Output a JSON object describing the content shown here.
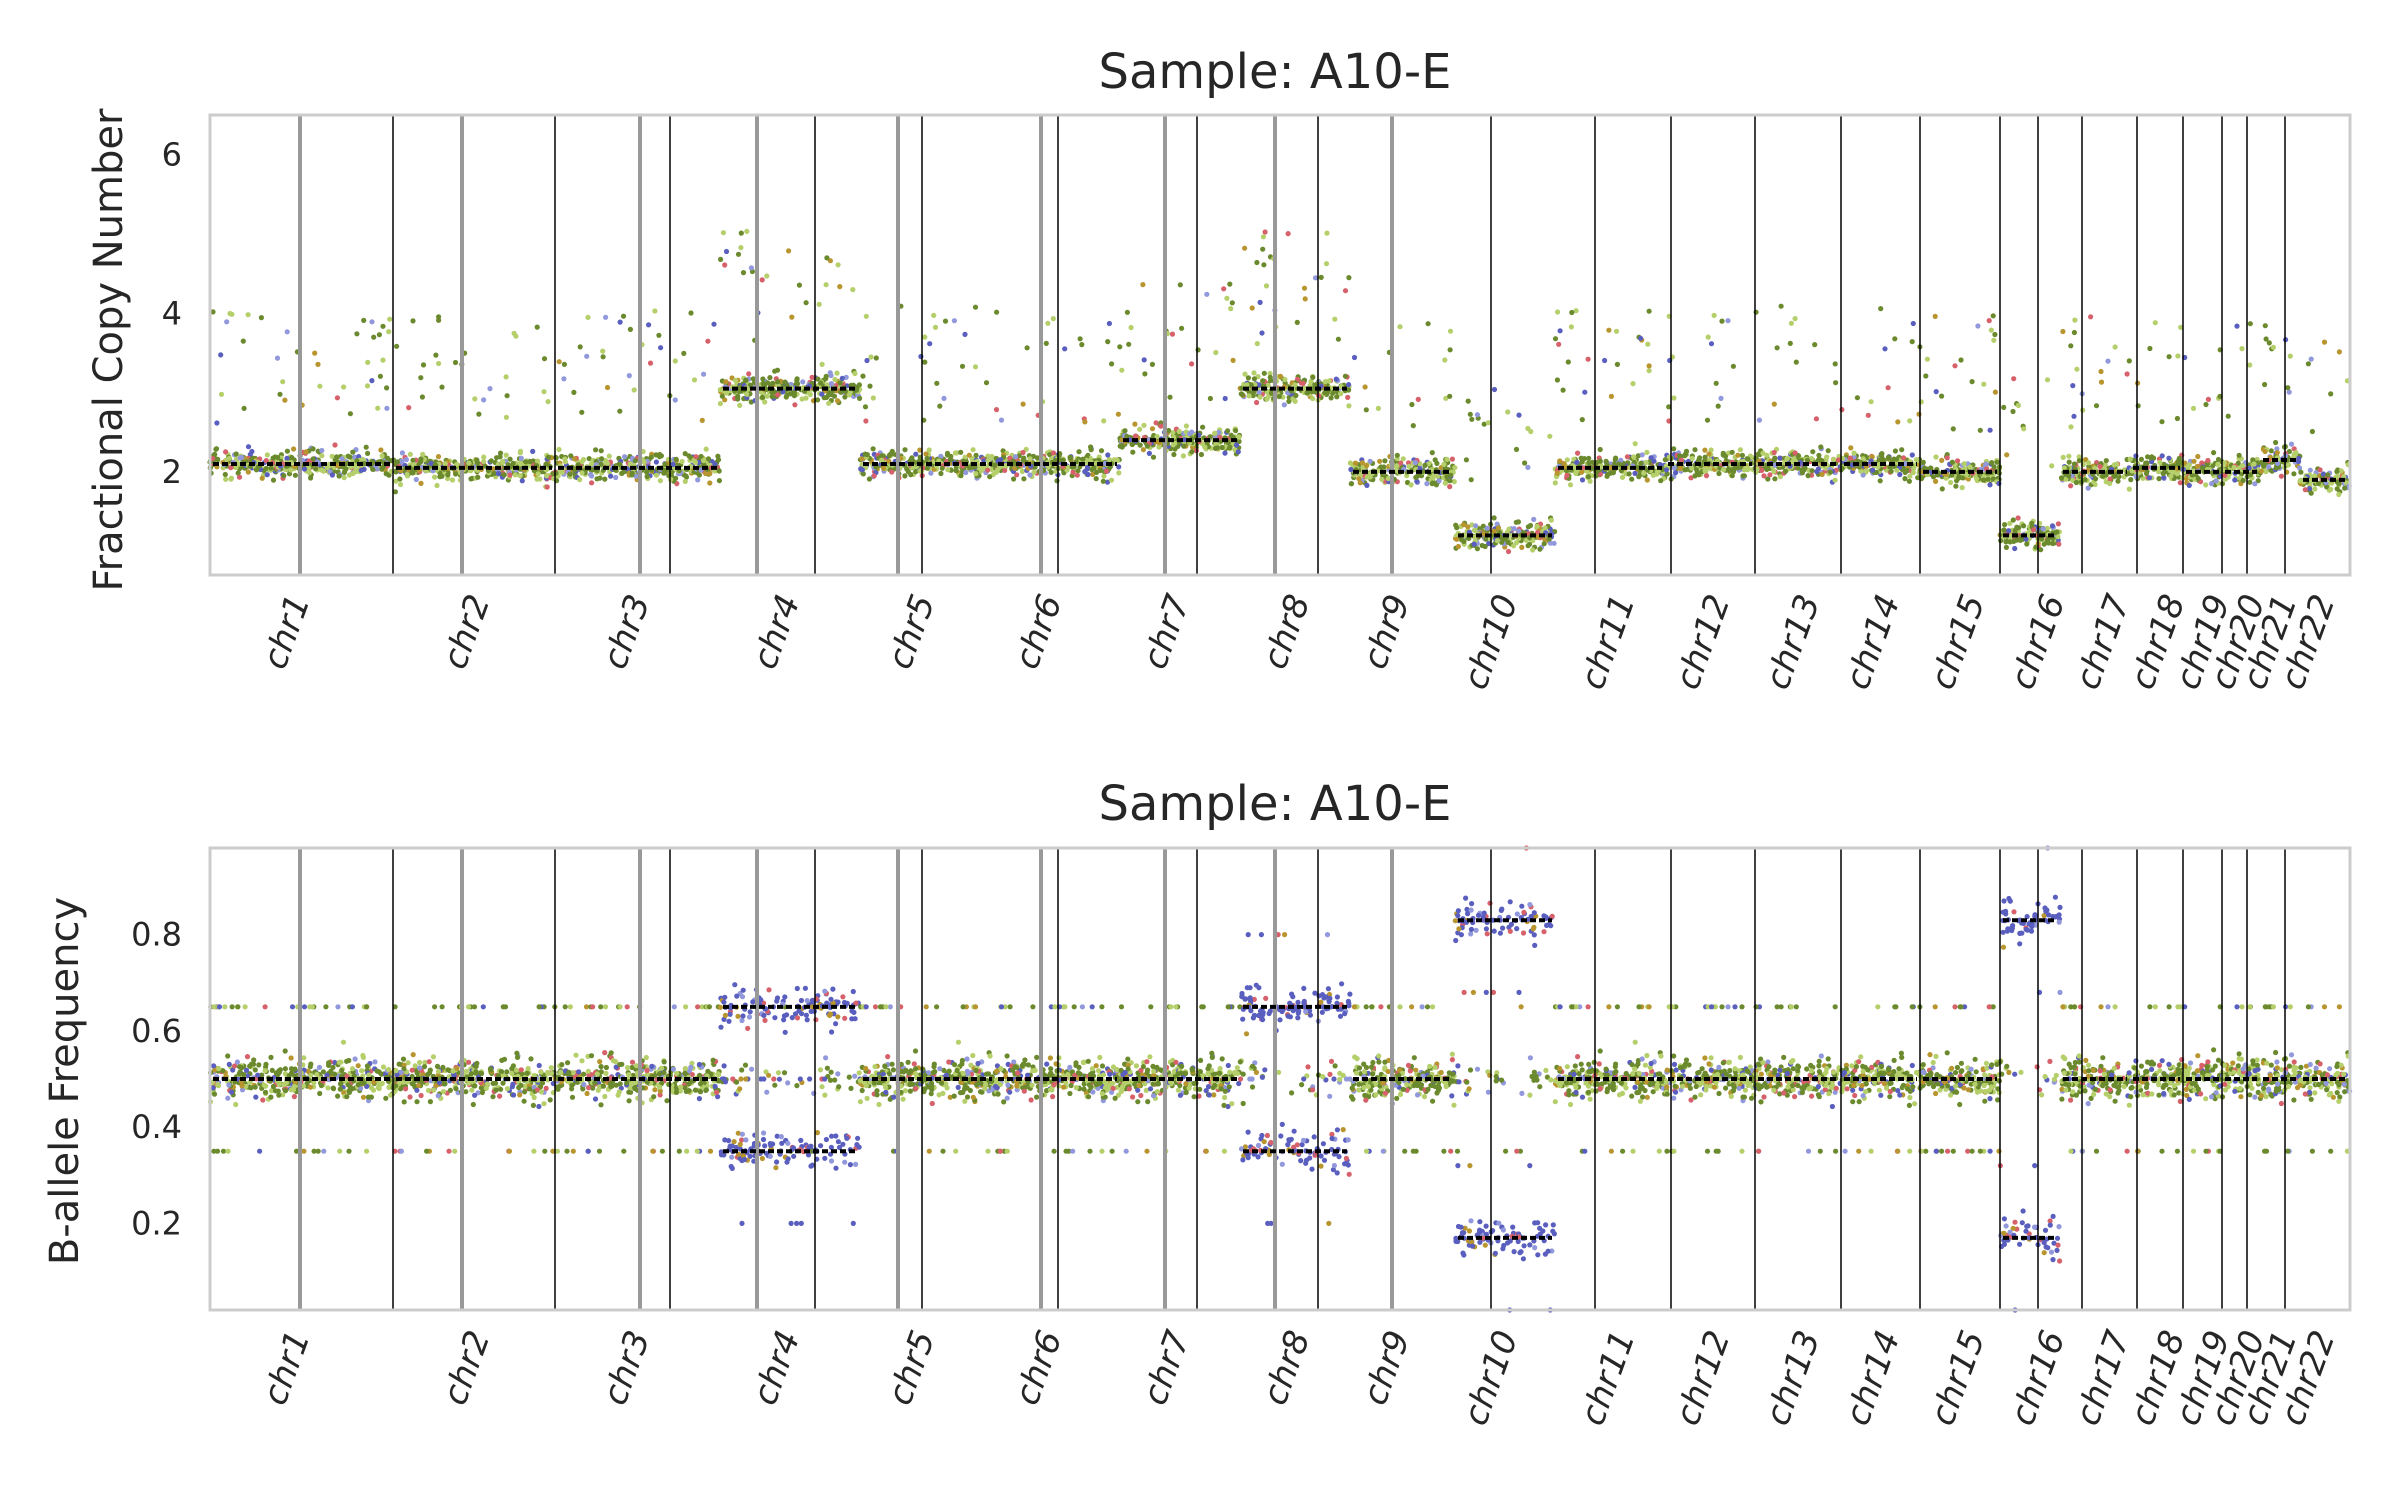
{
  "chart_data": [
    {
      "type": "scatter",
      "title": "Sample: A10-E",
      "ylabel": "Fractional Copy Number",
      "ylim": [
        0.7,
        6.5
      ],
      "yticks": [
        2,
        4,
        6
      ],
      "grid": false,
      "chromosomes": [
        "chr1",
        "chr2",
        "chr3",
        "chr4",
        "chr5",
        "chr6",
        "chr7",
        "chr8",
        "chr9",
        "chr10",
        "chr11",
        "chr12",
        "chr13",
        "chr14",
        "chr15",
        "chr16",
        "chr17",
        "chr18",
        "chr19",
        "chr20",
        "chr21",
        "chr22"
      ],
      "segments": [
        {
          "chr": "chr1",
          "value": 2.1
        },
        {
          "chr": "chr2",
          "value": 2.05
        },
        {
          "chr": "chr3",
          "value": 2.05
        },
        {
          "chr": "chr4",
          "value": 3.05
        },
        {
          "chr": "chr5",
          "value": 2.1
        },
        {
          "chr": "chr6",
          "value": 2.1
        },
        {
          "chr": "chr7",
          "value": 2.4
        },
        {
          "chr": "chr8",
          "value": 3.05
        },
        {
          "chr": "chr9",
          "value": 2.0
        },
        {
          "chr": "chr10",
          "value": 1.2
        },
        {
          "chr": "chr11",
          "value": 2.05
        },
        {
          "chr": "chr12",
          "value": 2.1
        },
        {
          "chr": "chr13",
          "value": 2.1
        },
        {
          "chr": "chr14",
          "value": 2.1
        },
        {
          "chr": "chr15",
          "value": 2.0
        },
        {
          "chr": "chr16",
          "value": 1.2
        },
        {
          "chr": "chr17",
          "value": 2.0
        },
        {
          "chr": "chr18",
          "value": 2.05
        },
        {
          "chr": "chr19",
          "value": 2.0
        },
        {
          "chr": "chr20",
          "value": 2.0
        },
        {
          "chr": "chr21",
          "value": 2.15
        },
        {
          "chr": "chr22",
          "value": 1.9
        }
      ]
    },
    {
      "type": "scatter",
      "title": "Sample: A10-E",
      "ylabel": "B-allele Frequency",
      "ylim": [
        0.02,
        0.98
      ],
      "yticks": [
        0.2,
        0.4,
        0.6,
        0.8
      ],
      "grid": false,
      "chromosomes": [
        "chr1",
        "chr2",
        "chr3",
        "chr4",
        "chr5",
        "chr6",
        "chr7",
        "chr8",
        "chr9",
        "chr10",
        "chr11",
        "chr12",
        "chr13",
        "chr14",
        "chr15",
        "chr16",
        "chr17",
        "chr18",
        "chr19",
        "chr20",
        "chr21",
        "chr22"
      ],
      "segments": [
        {
          "chr": "chr1",
          "value": 0.5
        },
        {
          "chr": "chr2",
          "value": 0.5
        },
        {
          "chr": "chr3",
          "value": 0.5
        },
        {
          "chr": "chr4",
          "value": 0.5,
          "split": [
            0.35,
            0.65
          ]
        },
        {
          "chr": "chr5",
          "value": 0.5
        },
        {
          "chr": "chr6",
          "value": 0.5
        },
        {
          "chr": "chr7",
          "value": 0.5
        },
        {
          "chr": "chr8",
          "value": 0.5,
          "split": [
            0.35,
            0.65
          ]
        },
        {
          "chr": "chr9",
          "value": 0.5
        },
        {
          "chr": "chr10",
          "value": 0.5,
          "split": [
            0.17,
            0.83
          ]
        },
        {
          "chr": "chr11",
          "value": 0.5
        },
        {
          "chr": "chr12",
          "value": 0.5
        },
        {
          "chr": "chr13",
          "value": 0.5
        },
        {
          "chr": "chr14",
          "value": 0.5
        },
        {
          "chr": "chr15",
          "value": 0.5
        },
        {
          "chr": "chr16",
          "value": 0.5,
          "split": [
            0.17,
            0.83
          ]
        },
        {
          "chr": "chr17",
          "value": 0.5
        },
        {
          "chr": "chr18",
          "value": 0.5
        },
        {
          "chr": "chr19",
          "value": 0.5
        },
        {
          "chr": "chr20",
          "value": 0.5
        },
        {
          "chr": "chr21",
          "value": 0.5
        },
        {
          "chr": "chr22",
          "value": 0.5
        }
      ]
    }
  ],
  "colors": {
    "green": "#6b8a2e",
    "lightgreen": "#b5cf6b",
    "blue": "#5a5fbf",
    "lightblue": "#9198db",
    "gold": "#b8952f",
    "red": "#d6616b",
    "segment": "#000000",
    "frame": "#cccccc",
    "centromere": "#999999"
  }
}
